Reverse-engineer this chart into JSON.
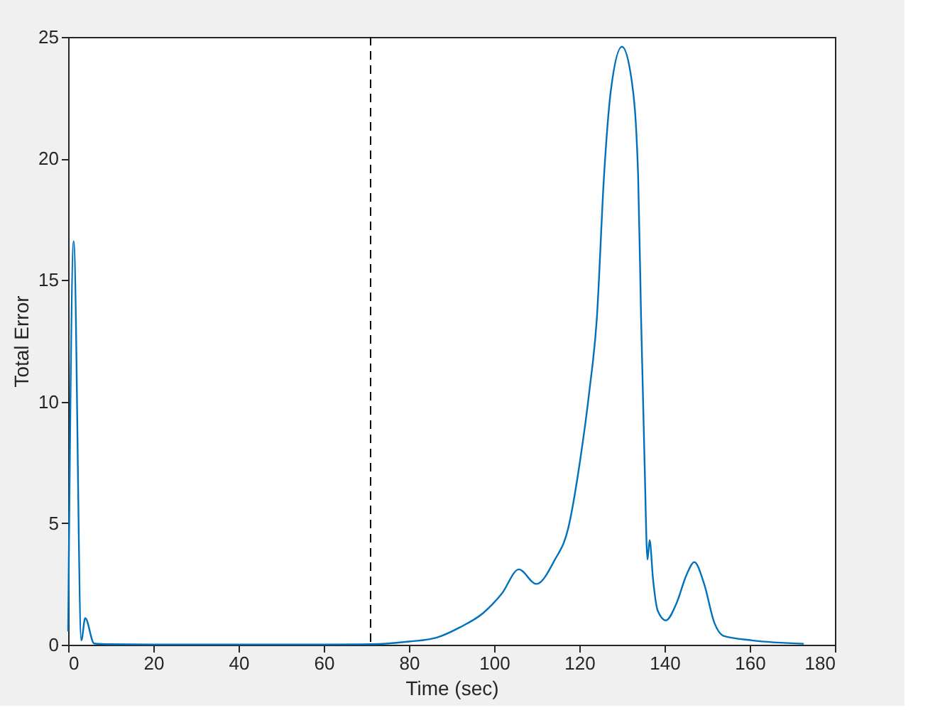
{
  "chart_data": {
    "type": "line",
    "xlabel": "Time (sec)",
    "ylabel": "Total Error",
    "series": [
      {
        "color": "#0072bd",
        "x": [
          0,
          1.3,
          3.1,
          4.0,
          6.1,
          10,
          20,
          40,
          60,
          71,
          80,
          86.4,
          92,
          97.4,
          101.8,
          105.8,
          109.9,
          114.1,
          117.4,
          120.2,
          122.4,
          124.1,
          125.8,
          127.4,
          130,
          132.3,
          133.8,
          134.5,
          135.3,
          136.0,
          136.5,
          137.3,
          138.4,
          140.3,
          142.8,
          145.1,
          147.0,
          149.3,
          151.7,
          153.9,
          160.5,
          172.7
        ],
        "values": [
          0.55,
          16.6,
          0.18,
          1.1,
          0.05,
          0.02,
          0.01,
          0.01,
          0.01,
          0.02,
          0.13,
          0.29,
          0.72,
          1.3,
          2.1,
          3.1,
          2.5,
          3.45,
          4.8,
          7.6,
          10.5,
          13.4,
          19.3,
          22.8,
          24.6,
          23.2,
          19.3,
          13.4,
          7.6,
          3.5,
          4.3,
          2.7,
          1.4,
          1.0,
          1.7,
          2.85,
          3.4,
          2.5,
          0.9,
          0.36,
          0.18,
          0.04
        ]
      }
    ],
    "xlim": [
      0,
      180
    ],
    "xticks": [
      0,
      20,
      40,
      60,
      80,
      100,
      120,
      140,
      160,
      180
    ],
    "ylim": [
      0,
      25
    ],
    "yticks": [
      0,
      5,
      10,
      15,
      20,
      25
    ],
    "grid": false,
    "marker": "none",
    "line_style": "solid",
    "ref_lines": [
      {
        "axis": "x",
        "value": 71,
        "color": "#000000",
        "line_style": "dashed"
      }
    ]
  }
}
